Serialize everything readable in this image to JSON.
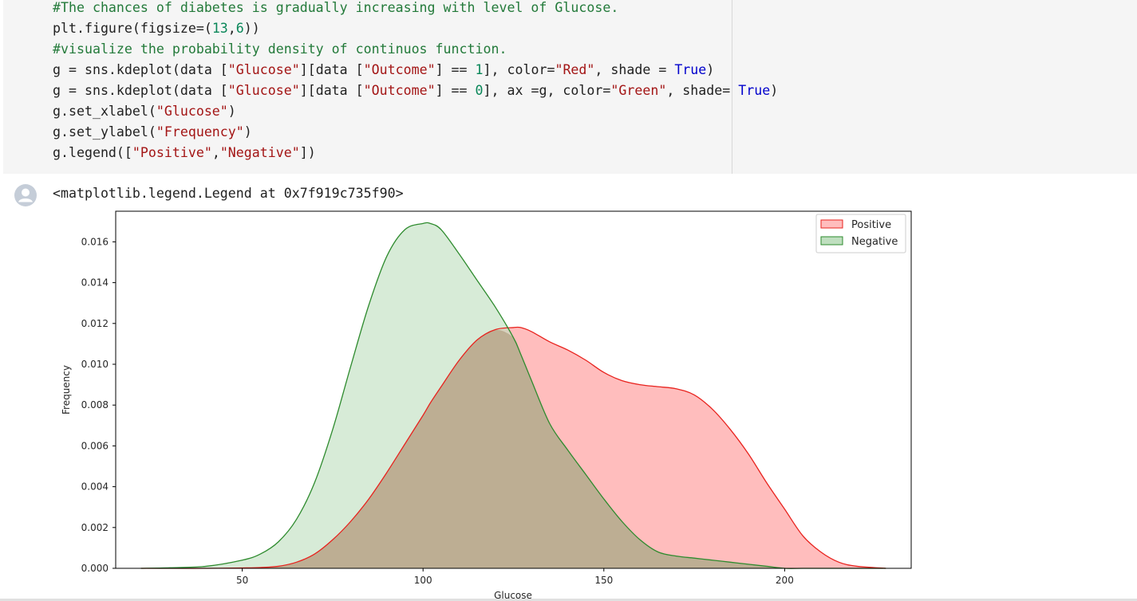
{
  "code_cell": {
    "lines": [
      [
        {
          "t": "#The chances of diabetes is gradually increasing with level of Glucose.",
          "c": "comment"
        }
      ],
      [
        {
          "t": "plt.figure(figsize=(",
          "c": "plain"
        },
        {
          "t": "13",
          "c": "num"
        },
        {
          "t": ",",
          "c": "plain"
        },
        {
          "t": "6",
          "c": "num"
        },
        {
          "t": "))",
          "c": "plain"
        }
      ],
      [
        {
          "t": "#visualize the probability density of continuos function.",
          "c": "comment"
        }
      ],
      [
        {
          "t": "g = sns.kdeplot(data [",
          "c": "plain"
        },
        {
          "t": "\"Glucose\"",
          "c": "str"
        },
        {
          "t": "][data [",
          "c": "plain"
        },
        {
          "t": "\"Outcome\"",
          "c": "str"
        },
        {
          "t": "] == ",
          "c": "plain"
        },
        {
          "t": "1",
          "c": "num"
        },
        {
          "t": "], color=",
          "c": "plain"
        },
        {
          "t": "\"Red\"",
          "c": "str"
        },
        {
          "t": ", shade = ",
          "c": "plain"
        },
        {
          "t": "True",
          "c": "kw"
        },
        {
          "t": ")",
          "c": "plain"
        }
      ],
      [
        {
          "t": "g = sns.kdeplot(data [",
          "c": "plain"
        },
        {
          "t": "\"Glucose\"",
          "c": "str"
        },
        {
          "t": "][data [",
          "c": "plain"
        },
        {
          "t": "\"Outcome\"",
          "c": "str"
        },
        {
          "t": "] == ",
          "c": "plain"
        },
        {
          "t": "0",
          "c": "num"
        },
        {
          "t": "], ax =g, color=",
          "c": "plain"
        },
        {
          "t": "\"Green\"",
          "c": "str"
        },
        {
          "t": ", shade= ",
          "c": "plain"
        },
        {
          "t": "True",
          "c": "kw"
        },
        {
          "t": ")",
          "c": "plain"
        }
      ],
      [
        {
          "t": "g.set_xlabel(",
          "c": "plain"
        },
        {
          "t": "\"Glucose\"",
          "c": "str"
        },
        {
          "t": ")",
          "c": "plain"
        }
      ],
      [
        {
          "t": "g.set_ylabel(",
          "c": "plain"
        },
        {
          "t": "\"Frequency\"",
          "c": "str"
        },
        {
          "t": ")",
          "c": "plain"
        }
      ],
      [
        {
          "t": "g.legend([",
          "c": "plain"
        },
        {
          "t": "\"Positive\"",
          "c": "str"
        },
        {
          "t": ",",
          "c": "plain"
        },
        {
          "t": "\"Negative\"",
          "c": "str"
        },
        {
          "t": "])",
          "c": "plain"
        }
      ]
    ]
  },
  "output": {
    "text": "<matplotlib.legend.Legend at 0x7f919c735f90>",
    "icon": "user-avatar-icon"
  },
  "colors": {
    "cell_bg": "#f5f5f5",
    "positive_line": "#e8231e",
    "positive_fill": "#ffbdbd",
    "negative_line": "#2e8b2e",
    "negative_fill": "#bfdfbf",
    "overlap_fill": "#bdae93"
  },
  "chart_data": {
    "type": "area",
    "title": "",
    "xlabel": "Glucose",
    "ylabel": "Frequency",
    "xlim": [
      15,
      235
    ],
    "ylim": [
      0,
      0.0175
    ],
    "xticks": [
      50,
      100,
      150,
      200
    ],
    "yticks": [
      0.0,
      0.002,
      0.004,
      0.006,
      0.008,
      0.01,
      0.012,
      0.014,
      0.016
    ],
    "legend": {
      "position": "top-right",
      "entries": [
        "Positive",
        "Negative"
      ]
    },
    "x": [
      22,
      30,
      40,
      50,
      55,
      60,
      65,
      70,
      75,
      80,
      85,
      90,
      95,
      100,
      102,
      105,
      110,
      115,
      120,
      125,
      127,
      130,
      135,
      140,
      145,
      150,
      155,
      160,
      165,
      170,
      175,
      180,
      185,
      190,
      195,
      200,
      205,
      210,
      215,
      220,
      228
    ],
    "series": [
      {
        "name": "Positive",
        "values": [
          0,
          0,
          0,
          2e-05,
          4e-05,
          0.0001,
          0.0003,
          0.0007,
          0.0014,
          0.0023,
          0.0034,
          0.0047,
          0.0061,
          0.0075,
          0.0081,
          0.0089,
          0.0102,
          0.0112,
          0.0117,
          0.0118,
          0.0118,
          0.0116,
          0.0111,
          0.0107,
          0.0102,
          0.0096,
          0.0092,
          0.009,
          0.0089,
          0.0088,
          0.0085,
          0.0078,
          0.0068,
          0.0056,
          0.0042,
          0.0029,
          0.0016,
          0.0008,
          0.0003,
          0.0001,
          0
        ]
      },
      {
        "name": "Negative",
        "values": [
          0,
          3e-05,
          0.0001,
          0.0004,
          0.0007,
          0.0013,
          0.0024,
          0.0042,
          0.0068,
          0.0099,
          0.0129,
          0.0153,
          0.0166,
          0.0169,
          0.0169,
          0.0166,
          0.0154,
          0.0141,
          0.0128,
          0.0113,
          0.0105,
          0.0092,
          0.0071,
          0.0058,
          0.0046,
          0.0034,
          0.0023,
          0.0014,
          0.0008,
          0.0006,
          0.0005,
          0.0004,
          0.0003,
          0.0002,
          0.0001,
          0,
          0,
          0,
          0,
          0,
          0
        ]
      }
    ]
  }
}
